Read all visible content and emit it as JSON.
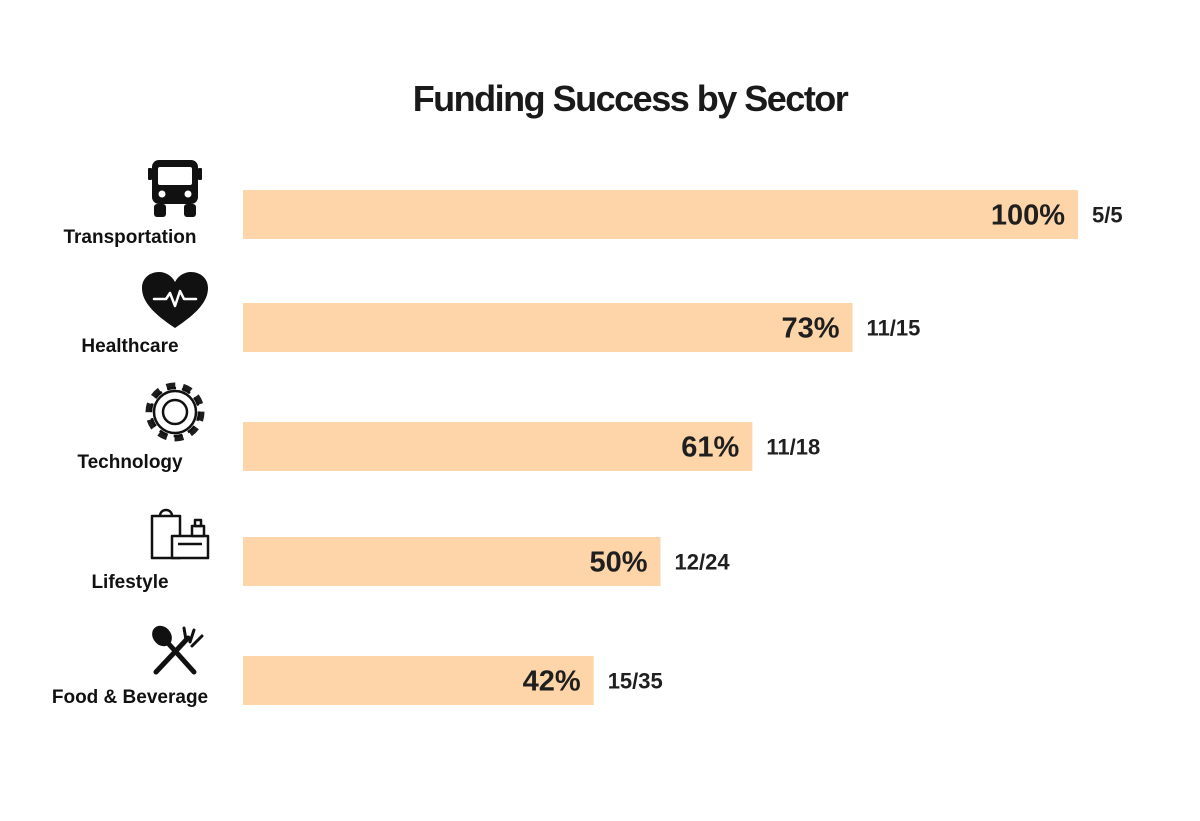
{
  "chart_data": {
    "type": "bar",
    "orientation": "horizontal",
    "title": "Funding Success by Sector",
    "xlim": [
      0,
      100
    ],
    "bar_color": "#fdd5a8",
    "categories": [
      {
        "label": "Transportation",
        "icon": "bus-icon",
        "value": 100,
        "value_label": "100%",
        "count_label": "5/5"
      },
      {
        "label": "Healthcare",
        "icon": "heartbeat-icon",
        "value": 73,
        "value_label": "73%",
        "count_label": "11/15"
      },
      {
        "label": "Technology",
        "icon": "gear-icon",
        "value": 61,
        "value_label": "61%",
        "count_label": "11/18"
      },
      {
        "label": "Lifestyle",
        "icon": "shopping-icon",
        "value": 50,
        "value_label": "50%",
        "count_label": "12/24"
      },
      {
        "label": "Food & Beverage",
        "icon": "utensils-icon",
        "value": 42,
        "value_label": "42%",
        "count_label": "15/35"
      }
    ],
    "grid": false,
    "legend": "none"
  }
}
